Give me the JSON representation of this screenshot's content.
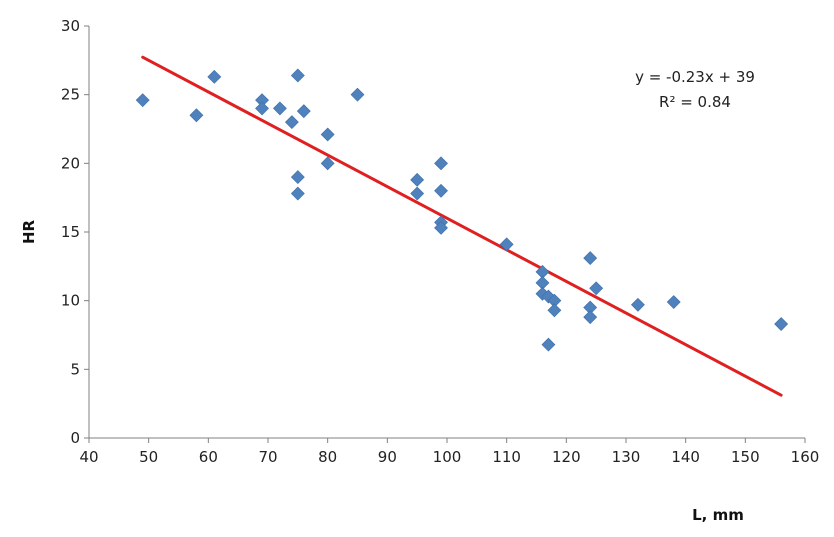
{
  "chart_data": {
    "type": "scatter",
    "xlabel": "L, mm",
    "ylabel": "HR",
    "xlim": [
      40,
      160
    ],
    "ylim": [
      0,
      30
    ],
    "xticks": [
      40,
      50,
      60,
      70,
      80,
      90,
      100,
      110,
      120,
      130,
      140,
      150,
      160
    ],
    "yticks": [
      0,
      5,
      10,
      15,
      20,
      25,
      30
    ],
    "grid": false,
    "legend": "none",
    "marker_color": "#4F81BD",
    "trendline_color": "#E02020",
    "trendline": {
      "slope": -0.23,
      "intercept": 39,
      "x_range": [
        49,
        156
      ]
    },
    "annotation": {
      "equation": "y = -0.23x + 39",
      "r_squared": "R² = 0.84"
    },
    "points": [
      {
        "x": 49,
        "y": 24.6
      },
      {
        "x": 58,
        "y": 23.5
      },
      {
        "x": 61,
        "y": 26.3
      },
      {
        "x": 69,
        "y": 24.6
      },
      {
        "x": 69,
        "y": 24.0
      },
      {
        "x": 72,
        "y": 24.0
      },
      {
        "x": 74,
        "y": 23.0
      },
      {
        "x": 75,
        "y": 26.4
      },
      {
        "x": 75,
        "y": 19.0
      },
      {
        "x": 75,
        "y": 17.8
      },
      {
        "x": 76,
        "y": 23.8
      },
      {
        "x": 80,
        "y": 22.1
      },
      {
        "x": 80,
        "y": 20.0
      },
      {
        "x": 85,
        "y": 25.0
      },
      {
        "x": 95,
        "y": 18.8
      },
      {
        "x": 95,
        "y": 17.8
      },
      {
        "x": 99,
        "y": 20.0
      },
      {
        "x": 99,
        "y": 18.0
      },
      {
        "x": 99,
        "y": 15.7
      },
      {
        "x": 99,
        "y": 15.3
      },
      {
        "x": 110,
        "y": 14.1
      },
      {
        "x": 116,
        "y": 12.1
      },
      {
        "x": 116,
        "y": 11.3
      },
      {
        "x": 116,
        "y": 10.5
      },
      {
        "x": 117,
        "y": 10.3
      },
      {
        "x": 117,
        "y": 6.8
      },
      {
        "x": 118,
        "y": 10.0
      },
      {
        "x": 118,
        "y": 9.3
      },
      {
        "x": 124,
        "y": 13.1
      },
      {
        "x": 124,
        "y": 9.5
      },
      {
        "x": 124,
        "y": 8.8
      },
      {
        "x": 125,
        "y": 10.9
      },
      {
        "x": 132,
        "y": 9.7
      },
      {
        "x": 138,
        "y": 9.9
      },
      {
        "x": 156,
        "y": 8.3
      }
    ]
  }
}
